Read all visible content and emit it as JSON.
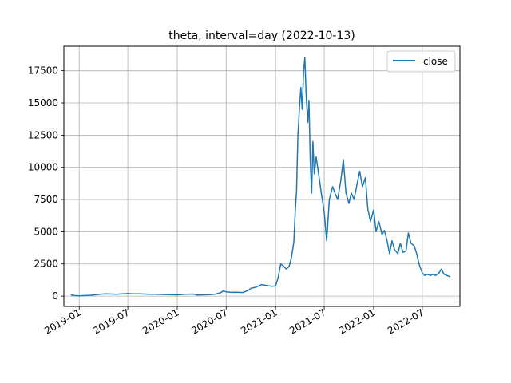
{
  "chart_data": {
    "type": "line",
    "title": "theta, interval=day (2022-10-13)",
    "xlabel": "",
    "ylabel": "",
    "grid": true,
    "legend_position": "top-right",
    "colors": {
      "close": "#1f77b4",
      "grid": "#b0b0b0"
    },
    "xlim": [
      "2018-11-05",
      "2022-11-18"
    ],
    "ylim": [
      -800,
      19400
    ],
    "x_ticks": [
      "2019-01",
      "2019-07",
      "2020-01",
      "2020-07",
      "2021-01",
      "2021-07",
      "2022-01",
      "2022-07"
    ],
    "y_ticks": [
      0,
      2500,
      5000,
      7500,
      10000,
      12500,
      15000,
      17500
    ],
    "y_tick_labels": [
      "0",
      "2500",
      "5000",
      "7500",
      "10000",
      "12500",
      "15000",
      "17500"
    ],
    "series": [
      {
        "name": "close",
        "x": [
          "2018-12-01",
          "2018-12-15",
          "2019-01-01",
          "2019-01-20",
          "2019-02-10",
          "2019-03-01",
          "2019-03-20",
          "2019-04-10",
          "2019-05-01",
          "2019-05-20",
          "2019-06-10",
          "2019-07-01",
          "2019-07-20",
          "2019-08-10",
          "2019-09-01",
          "2019-09-20",
          "2019-10-10",
          "2019-11-01",
          "2019-12-01",
          "2020-01-01",
          "2020-02-01",
          "2020-03-01",
          "2020-03-15",
          "2020-04-01",
          "2020-05-01",
          "2020-05-20",
          "2020-06-10",
          "2020-06-20",
          "2020-07-01",
          "2020-07-20",
          "2020-08-10",
          "2020-09-01",
          "2020-09-20",
          "2020-10-01",
          "2020-10-20",
          "2020-11-10",
          "2020-12-01",
          "2020-12-20",
          "2021-01-01",
          "2021-01-10",
          "2021-01-20",
          "2021-02-01",
          "2021-02-10",
          "2021-02-20",
          "2021-03-01",
          "2021-03-10",
          "2021-03-15",
          "2021-03-20",
          "2021-03-25",
          "2021-04-01",
          "2021-04-05",
          "2021-04-10",
          "2021-04-15",
          "2021-04-20",
          "2021-04-25",
          "2021-05-01",
          "2021-05-05",
          "2021-05-10",
          "2021-05-15",
          "2021-05-20",
          "2021-05-25",
          "2021-06-01",
          "2021-06-10",
          "2021-06-20",
          "2021-07-01",
          "2021-07-10",
          "2021-07-20",
          "2021-08-01",
          "2021-08-10",
          "2021-08-20",
          "2021-09-01",
          "2021-09-10",
          "2021-09-20",
          "2021-10-01",
          "2021-10-10",
          "2021-10-20",
          "2021-11-01",
          "2021-11-10",
          "2021-11-20",
          "2021-12-01",
          "2021-12-10",
          "2021-12-20",
          "2022-01-01",
          "2022-01-10",
          "2022-01-20",
          "2022-02-01",
          "2022-02-10",
          "2022-02-20",
          "2022-03-01",
          "2022-03-10",
          "2022-03-20",
          "2022-04-01",
          "2022-04-10",
          "2022-04-20",
          "2022-05-01",
          "2022-05-10",
          "2022-05-20",
          "2022-06-01",
          "2022-06-10",
          "2022-06-20",
          "2022-07-01",
          "2022-07-10",
          "2022-07-20",
          "2022-08-01",
          "2022-08-10",
          "2022-08-20",
          "2022-09-01",
          "2022-09-10",
          "2022-09-20",
          "2022-10-01",
          "2022-10-13"
        ],
        "y": [
          100,
          40,
          20,
          40,
          60,
          100,
          150,
          180,
          160,
          150,
          170,
          200,
          180,
          170,
          160,
          150,
          140,
          130,
          110,
          100,
          140,
          160,
          80,
          90,
          120,
          150,
          260,
          400,
          330,
          290,
          300,
          280,
          430,
          600,
          700,
          900,
          820,
          760,
          800,
          1400,
          2500,
          2300,
          2100,
          2300,
          3000,
          4200,
          6500,
          8200,
          12500,
          15000,
          16200,
          14500,
          17500,
          18500,
          15500,
          13500,
          15200,
          10500,
          8000,
          12000,
          9500,
          10800,
          9500,
          8000,
          6500,
          4300,
          7500,
          8500,
          8000,
          7500,
          9000,
          10600,
          8000,
          7200,
          8000,
          7500,
          8800,
          9700,
          8500,
          9200,
          6800,
          5800,
          6700,
          5000,
          5800,
          4800,
          5100,
          4300,
          3300,
          4300,
          3600,
          3300,
          4100,
          3400,
          3500,
          4900,
          4100,
          3900,
          3300,
          2400,
          1800,
          1600,
          1700,
          1600,
          1700,
          1600,
          1800,
          2100,
          1700,
          1600,
          1500
        ]
      }
    ]
  }
}
